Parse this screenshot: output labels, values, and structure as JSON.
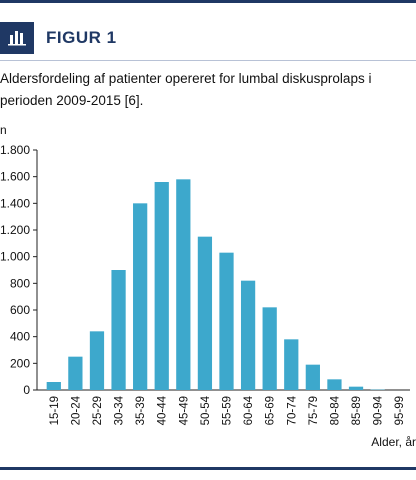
{
  "figure": {
    "label": "FIGUR 1",
    "icon": "bar-chart-icon",
    "caption": "Aldersfordeling af patienter opereret for lumbal diskusprolaps i perioden 2009-2015 [6]."
  },
  "colors": {
    "accent": "#1f3864",
    "bar": "#3da8cc"
  },
  "chart_data": {
    "type": "bar",
    "ylabel": "n",
    "xlabel": "Alder, år",
    "ylim": [
      0,
      1800
    ],
    "yticks": [
      0,
      200,
      400,
      600,
      800,
      1000,
      1200,
      1400,
      1600,
      1800
    ],
    "ytick_labels": [
      "0",
      "200",
      "400",
      "600",
      "800",
      "1.000",
      "1.200",
      "1.400",
      "1.600",
      "1.800"
    ],
    "categories": [
      "15-19",
      "20-24",
      "25-29",
      "30-34",
      "35-39",
      "40-44",
      "45-49",
      "50-54",
      "55-59",
      "60-64",
      "65-69",
      "70-74",
      "75-79",
      "80-84",
      "85-89",
      "90-94",
      "95-99"
    ],
    "values": [
      60,
      250,
      440,
      900,
      1400,
      1560,
      1580,
      1150,
      1030,
      820,
      620,
      380,
      190,
      80,
      25,
      3,
      0
    ],
    "grid": false,
    "legend": "none"
  }
}
